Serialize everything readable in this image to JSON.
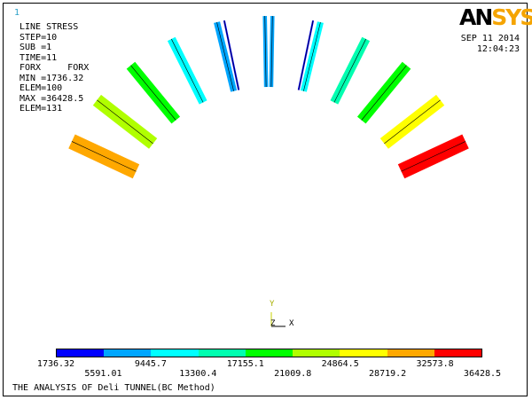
{
  "window_number": "1",
  "logo": {
    "part1": "AN",
    "part2": "SYS"
  },
  "info_lines": [
    "LINE STRESS",
    "STEP=10",
    "SUB =1",
    "TIME=11",
    "FORX     FORX",
    "MIN =1736.32",
    "ELEM=100",
    "MAX =36428.5",
    "ELEM=131"
  ],
  "date": {
    "date": "SEP 11 2014",
    "time": "12:04:23"
  },
  "triad": {
    "y_label": "Y",
    "z_label": "Z",
    "x_label": "X"
  },
  "legend": {
    "colors": [
      "#0000ff",
      "#00a6ff",
      "#00ffff",
      "#00ffb0",
      "#00ff00",
      "#b0ff00",
      "#ffff00",
      "#ffa800",
      "#ff0000"
    ],
    "top_labels": [
      "1736.32",
      "9445.7",
      "17155.1",
      "24864.5",
      "32573.8"
    ],
    "bottom_labels": [
      "5591.01",
      "13300.4",
      "21009.8",
      "28719.2",
      "36428.5"
    ]
  },
  "caption": "THE ANALYSIS OF Deli TUNNEL(BC Method)",
  "elements_left": [
    {
      "i": 6,
      "c": 0
    },
    {
      "i": 5,
      "c": 1
    },
    {
      "i": 4,
      "c": 1
    },
    {
      "i": 3,
      "c": 2
    },
    {
      "i": 2,
      "c": 4
    },
    {
      "i": 1,
      "c": 5
    },
    {
      "i": 0,
      "c": 7
    }
  ],
  "elements_right": [
    {
      "i": 6,
      "c": 0
    },
    {
      "i": 5,
      "c": 1
    },
    {
      "i": 4,
      "c": 2
    },
    {
      "i": 3,
      "c": 3
    },
    {
      "i": 2,
      "c": 4
    },
    {
      "i": 1,
      "c": 6
    },
    {
      "i": 0,
      "c": 8
    }
  ]
}
